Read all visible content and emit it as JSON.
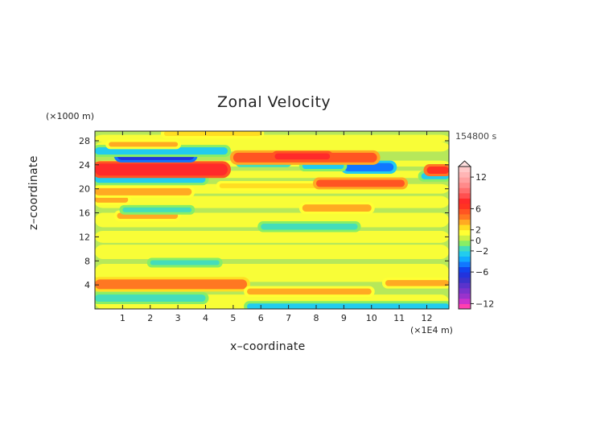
{
  "chart_data": {
    "type": "heatmap",
    "title": "Zonal Velocity",
    "xlabel": "x–coordinate",
    "ylabel": "z–coordinate",
    "x_unit": "(×1E4 m)",
    "y_unit": "(×1000 m)",
    "time_label": "154800 s",
    "xlim": [
      0,
      12.8
    ],
    "ylim": [
      0,
      29.6
    ],
    "x_ticks": [
      1,
      2,
      3,
      4,
      5,
      6,
      7,
      8,
      9,
      10,
      11,
      12
    ],
    "y_ticks": [
      4,
      8,
      12,
      16,
      20,
      24,
      28
    ],
    "colorbar": {
      "levels": [
        -13,
        -12,
        -11,
        -10,
        -9,
        -8,
        -7,
        -6,
        -5,
        -4,
        -3,
        -2,
        -1,
        0,
        1,
        2,
        3,
        4,
        5,
        6,
        7,
        8,
        9,
        10,
        11,
        12,
        13,
        14
      ],
      "colors": [
        "#ff3fb0",
        "#cc33cc",
        "#9933cc",
        "#7a33cc",
        "#5a33cc",
        "#3a33cc",
        "#2233dd",
        "#1144ee",
        "#1177ff",
        "#11aaff",
        "#22ccee",
        "#44ddbb",
        "#88ee66",
        "#ccf044",
        "#ffff33",
        "#ffdd22",
        "#ffaa22",
        "#ff7722",
        "#ff5522",
        "#ff3322",
        "#ff2a2a",
        "#ff5050",
        "#ff6e6e",
        "#ff8a8a",
        "#ffa0a0",
        "#ffb5b5",
        "#ffc8c8"
      ],
      "tick_labels": [
        "12",
        "6",
        "2",
        "0",
        "−2",
        "−6",
        "−12"
      ],
      "tick_values": [
        12,
        6,
        2,
        0,
        -2,
        -6,
        -12
      ],
      "extend": "max"
    },
    "bands": [
      {
        "z": 1.8,
        "u": -2,
        "width": 0.6,
        "x_range": [
          0.0,
          4.0
        ]
      },
      {
        "z": 0.4,
        "u": -3,
        "width": 0.5,
        "x_range": [
          5.5,
          12.8
        ]
      },
      {
        "z": 4.1,
        "u": 4,
        "width": 0.8,
        "x_range": [
          0.0,
          5.5
        ]
      },
      {
        "z": 2.9,
        "u": 3,
        "width": 0.5,
        "x_range": [
          5.5,
          10.0
        ]
      },
      {
        "z": 4.3,
        "u": 3,
        "width": 0.5,
        "x_range": [
          10.5,
          12.8
        ]
      },
      {
        "z": 7.7,
        "u": -2,
        "width": 0.4,
        "x_range": [
          2.0,
          4.5
        ]
      },
      {
        "z": 13.7,
        "u": -2,
        "width": 0.5,
        "x_range": [
          6.0,
          9.5
        ]
      },
      {
        "z": 15.5,
        "u": 3,
        "width": 0.5,
        "x_range": [
          0.8,
          3.0
        ]
      },
      {
        "z": 16.5,
        "u": -2,
        "width": 0.4,
        "x_range": [
          1.0,
          3.5
        ]
      },
      {
        "z": 16.8,
        "u": 3,
        "width": 0.6,
        "x_range": [
          7.5,
          10.0
        ]
      },
      {
        "z": 18.2,
        "u": 3,
        "width": 0.5,
        "x_range": [
          0.0,
          1.2
        ]
      },
      {
        "z": 19.5,
        "u": 3,
        "width": 0.6,
        "x_range": [
          0.0,
          3.5
        ]
      },
      {
        "z": 20.5,
        "u": 2,
        "width": 0.4,
        "x_range": [
          4.5,
          8.0
        ]
      },
      {
        "z": 20.9,
        "u": 5,
        "width": 0.6,
        "x_range": [
          8.0,
          11.2
        ]
      },
      {
        "z": 21.6,
        "u": -3,
        "width": 0.6,
        "x_range": [
          0.0,
          4.0
        ]
      },
      {
        "z": 22.1,
        "u": -3,
        "width": 0.5,
        "x_range": [
          11.8,
          12.8
        ]
      },
      {
        "z": 23.2,
        "u": 7,
        "width": 1.0,
        "x_range": [
          0.0,
          4.8
        ]
      },
      {
        "z": 23.1,
        "u": 6,
        "width": 0.6,
        "x_range": [
          12.0,
          12.8
        ]
      },
      {
        "z": 23.6,
        "u": -5,
        "width": 0.7,
        "x_range": [
          9.0,
          10.8
        ]
      },
      {
        "z": 23.8,
        "u": -3,
        "width": 0.5,
        "x_range": [
          7.5,
          9.0
        ]
      },
      {
        "z": 24.4,
        "u": -4,
        "width": 0.4,
        "x_range": [
          5.2,
          7.0
        ]
      },
      {
        "z": 25.2,
        "u": 5,
        "width": 0.8,
        "x_range": [
          5.0,
          10.2
        ]
      },
      {
        "z": 25.4,
        "u": 7,
        "width": 0.5,
        "x_range": [
          6.5,
          8.5
        ]
      },
      {
        "z": 25.6,
        "u": -7,
        "width": 0.8,
        "x_range": [
          0.8,
          3.6
        ]
      },
      {
        "z": 26.3,
        "u": -3,
        "width": 0.6,
        "x_range": [
          0.0,
          4.8
        ]
      },
      {
        "z": 27.4,
        "u": 3,
        "width": 0.4,
        "x_range": [
          0.5,
          3.0
        ]
      },
      {
        "z": 29.2,
        "u": 2,
        "width": 0.4,
        "x_range": [
          2.5,
          6.0
        ]
      }
    ]
  }
}
